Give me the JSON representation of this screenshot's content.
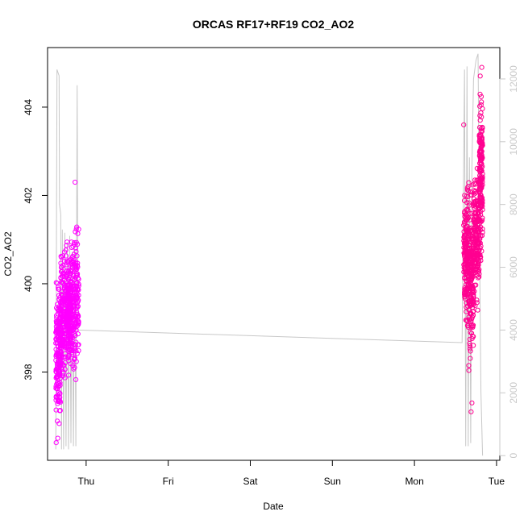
{
  "chart_data": {
    "type": "scatter",
    "title": "ORCAS RF17+RF19 CO2_AO2",
    "xlabel": "Date",
    "ylabel": "CO2_AO2",
    "y2label": "",
    "xlim": [
      -0.47,
      5.04
    ],
    "ylim": [
      396.0,
      405.35
    ],
    "y2lim": [
      -150,
      13000
    ],
    "x_ticks": [
      {
        "value": 0,
        "label": "Thu"
      },
      {
        "value": 1,
        "label": "Fri"
      },
      {
        "value": 2,
        "label": "Sat"
      },
      {
        "value": 3,
        "label": "Sun"
      },
      {
        "value": 4,
        "label": "Mon"
      },
      {
        "value": 5,
        "label": "Tue"
      }
    ],
    "y_ticks": [
      398,
      400,
      402,
      404
    ],
    "y2_ticks": [
      0,
      2000,
      4000,
      6000,
      8000,
      10000,
      12000
    ],
    "colors": {
      "rf17_points": "#ff00ff",
      "rf19_points": "#ff0090",
      "altitude_line": "#c8c8c8"
    },
    "series": [
      {
        "flight": "RF17",
        "x_range": [
          -0.37,
          -0.09
        ],
        "segments": [
          {
            "x": [
              -0.37,
              -0.31
            ],
            "y_range": [
              396.4,
              400.6
            ]
          },
          {
            "x": [
              -0.31,
              -0.23
            ],
            "y_range": [
              397.4,
              401.4
            ]
          },
          {
            "x": [
              -0.23,
              -0.18
            ],
            "y_range": [
              397.8,
              400.9
            ]
          },
          {
            "x": [
              -0.18,
              -0.09
            ],
            "y_range": [
              397.5,
              402.0
            ]
          }
        ],
        "outliers": [
          {
            "x": -0.135,
            "y": 402.3
          },
          {
            "x": -0.365,
            "y": 396.4
          },
          {
            "x": -0.345,
            "y": 396.5
          }
        ]
      },
      {
        "flight": "RF19",
        "x_range": [
          4.6,
          4.83
        ],
        "segments": [
          {
            "x": [
              4.6,
              4.66
            ],
            "y_range": [
              398.5,
              402.8
            ]
          },
          {
            "x": [
              4.66,
              4.72
            ],
            "y_range": [
              397.6,
              402.5
            ]
          },
          {
            "x": [
              4.72,
              4.79
            ],
            "y_range": [
              399.2,
              403.0
            ]
          },
          {
            "x": [
              4.79,
              4.83
            ],
            "y_range": [
              400.0,
              404.9
            ]
          }
        ],
        "outliers": [
          {
            "x": 4.6,
            "y": 403.6
          },
          {
            "x": 4.69,
            "y": 397.1
          },
          {
            "x": 4.7,
            "y": 397.3
          },
          {
            "x": 4.82,
            "y": 404.9
          }
        ]
      }
    ],
    "altitude": [
      {
        "x": -0.37,
        "y2": 200
      },
      {
        "x": -0.355,
        "y2": 12300
      },
      {
        "x": -0.33,
        "y2": 12100
      },
      {
        "x": -0.325,
        "y2": 8000
      },
      {
        "x": -0.31,
        "y2": 7700
      },
      {
        "x": -0.3,
        "y2": 200
      },
      {
        "x": -0.29,
        "y2": 7200
      },
      {
        "x": -0.275,
        "y2": 200
      },
      {
        "x": -0.26,
        "y2": 7100
      },
      {
        "x": -0.245,
        "y2": 300
      },
      {
        "x": -0.23,
        "y2": 6800
      },
      {
        "x": -0.215,
        "y2": 200
      },
      {
        "x": -0.2,
        "y2": 7000
      },
      {
        "x": -0.185,
        "y2": 400
      },
      {
        "x": -0.17,
        "y2": 6500
      },
      {
        "x": -0.155,
        "y2": 300
      },
      {
        "x": -0.14,
        "y2": 6600
      },
      {
        "x": -0.125,
        "y2": 300
      },
      {
        "x": -0.11,
        "y2": 11800
      },
      {
        "x": -0.1,
        "y2": 4000
      },
      {
        "x": 4.58,
        "y2": 3600
      },
      {
        "x": 4.61,
        "y2": 12300
      },
      {
        "x": 4.625,
        "y2": 300
      },
      {
        "x": 4.64,
        "y2": 12400
      },
      {
        "x": 4.655,
        "y2": 300
      },
      {
        "x": 4.67,
        "y2": 9500
      },
      {
        "x": 4.685,
        "y2": 400
      },
      {
        "x": 4.7,
        "y2": 9200
      },
      {
        "x": 4.72,
        "y2": 12000
      },
      {
        "x": 4.75,
        "y2": 12600
      },
      {
        "x": 4.775,
        "y2": 12800
      },
      {
        "x": 4.795,
        "y2": 6000
      },
      {
        "x": 4.81,
        "y2": 2000
      },
      {
        "x": 4.83,
        "y2": 0
      }
    ]
  }
}
